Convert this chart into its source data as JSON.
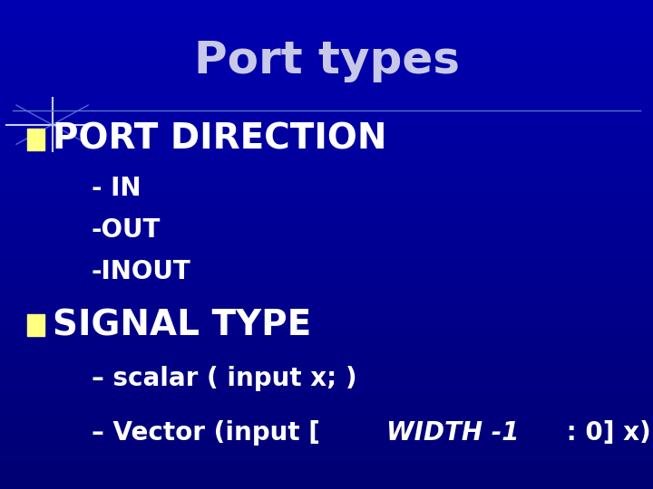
{
  "title": "Port types",
  "title_color": "#C8C8E8",
  "title_fontsize": 36,
  "bg_color": "#0000AA",
  "bullet_color": "#FFFF80",
  "text_color": "#FFFFFF",
  "section1_header": "PORT DIRECTION",
  "section1_items": [
    "- IN",
    "-OUT",
    "-INOUT"
  ],
  "section2_header": "SIGNAL TYPE",
  "section2_item1": "– scalar ( input x; )",
  "section2_item2_pre": "– Vector (input [",
  "section2_item2_italic": "WIDTH -1",
  "section2_item2_post": " : 0] x)",
  "header_fontsize": 28,
  "item_fontsize": 20,
  "sub_item_fontsize": 20
}
